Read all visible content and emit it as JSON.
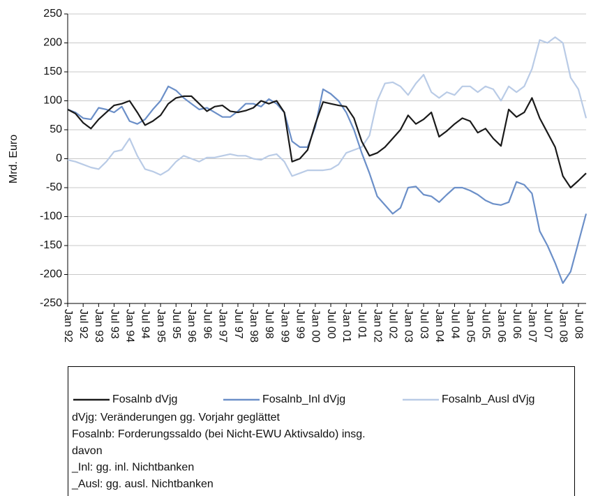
{
  "chart_data": {
    "type": "line",
    "y_label": "Mrd. Euro",
    "categories": [
      "Jan 92",
      null,
      "Jul 92",
      null,
      "Jan 93",
      null,
      "Jul 93",
      null,
      "Jan 94",
      null,
      "Jul 94",
      null,
      "Jan 95",
      null,
      "Jul 95",
      null,
      "Jan 96",
      null,
      "Jul 96",
      null,
      "Jan 97",
      null,
      "Jul 97",
      null,
      "Jan 98",
      null,
      "Jul 98",
      null,
      "Jan 99",
      null,
      "Jul 99",
      null,
      "Jan 00",
      null,
      "Jul 00",
      null,
      "Jan 01",
      null,
      "Jul 01",
      null,
      "Jan 02",
      null,
      "Jul 02",
      null,
      "Jan 03",
      null,
      "Jul 03",
      null,
      "Jan 04",
      null,
      "Jul 04",
      null,
      "Jan 05",
      null,
      "Jul 05",
      null,
      "Jan 06",
      null,
      "Jul 06",
      null,
      "Jan 07",
      null,
      "Jul 07",
      null,
      "Jan 08",
      null,
      "Jul 08",
      null
    ],
    "series": [
      {
        "name": "Fosalnb dVjg",
        "color": "#1a1a1a",
        "values": [
          85,
          78,
          62,
          52,
          68,
          80,
          92,
          95,
          100,
          80,
          58,
          65,
          75,
          95,
          105,
          108,
          108,
          95,
          82,
          90,
          92,
          82,
          80,
          83,
          88,
          100,
          95,
          100,
          80,
          -5,
          0,
          15,
          60,
          98,
          95,
          92,
          90,
          70,
          30,
          5,
          10,
          20,
          35,
          50,
          75,
          60,
          68,
          80,
          38,
          48,
          60,
          70,
          65,
          45,
          52,
          35,
          22,
          85,
          72,
          80,
          105,
          70,
          45,
          20,
          -30,
          -50,
          -38,
          -25
        ]
      },
      {
        "name": "Fosalnb_Inl dVjg",
        "color": "#6b8fc8",
        "values": [
          85,
          80,
          70,
          68,
          88,
          85,
          80,
          90,
          65,
          60,
          68,
          85,
          100,
          125,
          118,
          105,
          95,
          85,
          88,
          80,
          72,
          72,
          82,
          95,
          95,
          90,
          103,
          95,
          80,
          30,
          20,
          20,
          55,
          120,
          112,
          100,
          80,
          50,
          10,
          -25,
          -65,
          -80,
          -95,
          -85,
          -50,
          -48,
          -62,
          -65,
          -75,
          -62,
          -50,
          -50,
          -55,
          -62,
          -72,
          -78,
          -80,
          -75,
          -40,
          -45,
          -60,
          -125,
          -150,
          -180,
          -215,
          -195,
          -145,
          -95
        ]
      },
      {
        "name": "Fosalnb_Ausl dVjg",
        "color": "#b9cbe6",
        "values": [
          -2,
          -5,
          -10,
          -15,
          -18,
          -5,
          12,
          15,
          35,
          5,
          -18,
          -22,
          -28,
          -20,
          -5,
          5,
          0,
          -5,
          2,
          2,
          5,
          8,
          5,
          5,
          0,
          -2,
          5,
          8,
          -5,
          -30,
          -25,
          -20,
          -20,
          -20,
          -18,
          -10,
          10,
          15,
          20,
          40,
          100,
          130,
          132,
          125,
          110,
          130,
          145,
          115,
          105,
          115,
          110,
          125,
          125,
          115,
          125,
          120,
          100,
          125,
          115,
          125,
          155,
          205,
          200,
          210,
          200,
          140,
          120,
          70
        ]
      }
    ],
    "ylim": [
      -250,
      250
    ],
    "yticks": [
      -250,
      -200,
      -150,
      -100,
      -50,
      0,
      50,
      100,
      150,
      200,
      250
    ],
    "grid": true,
    "notes": [
      "dVjg: Veränderungen gg. Vorjahr geglättet",
      "Fosalnb: Forderungssaldo  (bei Nicht-EWU Aktivsaldo) insg.",
      "davon",
      "_Inl: gg. inl. Nichtbanken",
      "_Ausl: gg. ausl. Nichtbanken"
    ]
  }
}
